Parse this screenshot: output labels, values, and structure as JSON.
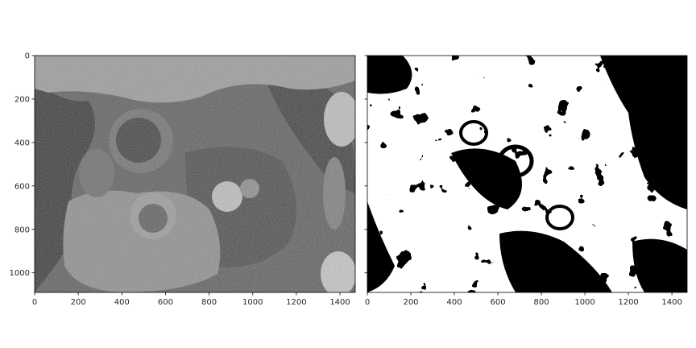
{
  "figure": {
    "panels": [
      {
        "name": "grayscale-micrograph",
        "description_visual": "grayscale",
        "x_ticks": [
          "0",
          "200",
          "400",
          "600",
          "800",
          "1000",
          "1200",
          "1400"
        ],
        "y_ticks": [
          "0",
          "200",
          "400",
          "600",
          "800",
          "1000"
        ]
      },
      {
        "name": "binary-threshold",
        "description_visual": "binary",
        "x_ticks": [
          "0",
          "200",
          "400",
          "600",
          "800",
          "1000",
          "1200",
          "1400"
        ],
        "y_ticks": []
      }
    ],
    "x_range": [
      0,
      1470
    ],
    "y_range": [
      0,
      1090
    ],
    "colors": {
      "axis": "#000000",
      "tick_text": "#262626",
      "gray_dark": "#2e2e2e",
      "gray_mid": "#7a7a7a",
      "gray_light": "#c8c8c8",
      "binary_black": "#000000",
      "binary_white": "#ffffff"
    }
  }
}
